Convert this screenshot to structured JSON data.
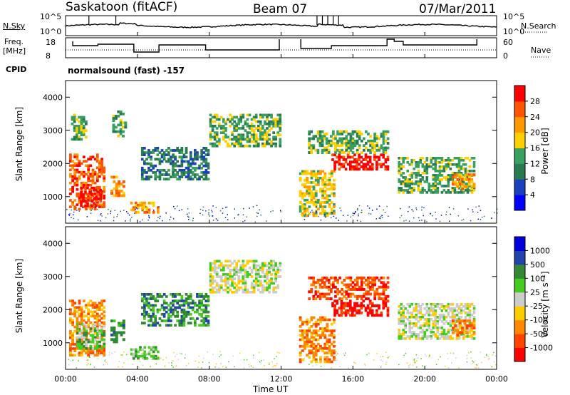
{
  "header": {
    "station": "Saskatoon (fitACF)",
    "beam": "Beam 07",
    "date": "07/Mar/2011",
    "cpid_label": "CPID",
    "cpid_text": "normalsound (fast) -157"
  },
  "noise_panel": {
    "left_label": "N.Sky",
    "right_label": "N.Search",
    "left_ticks": [
      "10^5",
      "10^0"
    ],
    "right_ticks": [
      "10^5",
      "10^0"
    ]
  },
  "freq_panel": {
    "left_label_1": "Freq.",
    "left_label_2": "[MHz]",
    "right_label": "Nave",
    "left_ticks": [
      "18",
      "8"
    ],
    "right_ticks": [
      "60",
      "0"
    ]
  },
  "colors": {
    "power_scale": [
      "#0000ff",
      "#1a40c0",
      "#2a7a50",
      "#3aa060",
      "#ffd000",
      "#ff9900",
      "#ff5500",
      "#ff0000"
    ],
    "velocity_scale": [
      "#ff0000",
      "#ff4400",
      "#ff8800",
      "#ffcc00",
      "#cccccc",
      "#44cc22",
      "#338833",
      "#2244aa",
      "#0000dd"
    ]
  },
  "chart_data": [
    {
      "type": "heatmap",
      "name": "power",
      "ylabel": "Slant Range [km]",
      "y_ticks": [
        "1000",
        "2000",
        "3000",
        "4000"
      ],
      "ylim": [
        200,
        4500
      ],
      "xlim_hours": [
        0,
        24
      ],
      "colorbar_label": "Power [dB]",
      "colorbar_ticks": [
        "4",
        "8",
        "12",
        "16",
        "20",
        "24",
        "28"
      ],
      "echo_regions": [
        {
          "t0": 0.2,
          "t1": 2.2,
          "r0": 600,
          "r1": 2300,
          "level": 6
        },
        {
          "t0": 0.8,
          "t1": 2.0,
          "r0": 700,
          "r1": 1300,
          "level": 7
        },
        {
          "t0": 0.3,
          "t1": 1.2,
          "r0": 2700,
          "r1": 3500,
          "level": 3
        },
        {
          "t0": 2.5,
          "t1": 3.3,
          "r0": 1000,
          "r1": 1700,
          "level": 5
        },
        {
          "t0": 2.6,
          "t1": 3.4,
          "r0": 2800,
          "r1": 3600,
          "level": 3
        },
        {
          "t0": 3.6,
          "t1": 5.2,
          "r0": 500,
          "r1": 850,
          "level": 5
        },
        {
          "t0": 4.2,
          "t1": 8.0,
          "r0": 1500,
          "r1": 2500,
          "level": 2
        },
        {
          "t0": 8.0,
          "t1": 12.0,
          "r0": 2500,
          "r1": 3500,
          "level": 3
        },
        {
          "t0": 13.0,
          "t1": 15.0,
          "r0": 400,
          "r1": 1800,
          "level": 4
        },
        {
          "t0": 14.8,
          "t1": 18.0,
          "r0": 1800,
          "r1": 2300,
          "level": 7
        },
        {
          "t0": 13.5,
          "t1": 18.0,
          "r0": 2300,
          "r1": 3000,
          "level": 3
        },
        {
          "t0": 18.5,
          "t1": 22.8,
          "r0": 1100,
          "r1": 2200,
          "level": 3
        },
        {
          "t0": 21.5,
          "t1": 22.8,
          "r0": 1200,
          "r1": 1700,
          "level": 5
        }
      ]
    },
    {
      "type": "heatmap",
      "name": "velocity",
      "ylabel": "Slant Range [km]",
      "y_ticks": [
        "1000",
        "2000",
        "3000",
        "4000"
      ],
      "ylim": [
        200,
        4500
      ],
      "xlim_hours": [
        0,
        24
      ],
      "colorbar_label": "Velocity [m s⁻¹]",
      "colorbar_ticks": [
        "-1000",
        "-500",
        "-100",
        "-25",
        "25",
        "100",
        "500",
        "1000"
      ],
      "echo_regions": [
        {
          "t0": 0.2,
          "t1": 2.2,
          "r0": 600,
          "r1": 2300,
          "level": 2
        },
        {
          "t0": 0.6,
          "t1": 2.2,
          "r0": 800,
          "r1": 1600,
          "level": 5
        },
        {
          "t0": 2.5,
          "t1": 3.3,
          "r0": 1000,
          "r1": 1700,
          "level": 6
        },
        {
          "t0": 3.6,
          "t1": 5.2,
          "r0": 500,
          "r1": 900,
          "level": 5
        },
        {
          "t0": 4.2,
          "t1": 8.0,
          "r0": 1500,
          "r1": 2500,
          "level": 6
        },
        {
          "t0": 8.0,
          "t1": 12.0,
          "r0": 2500,
          "r1": 3500,
          "level": 4
        },
        {
          "t0": 13.0,
          "t1": 15.0,
          "r0": 400,
          "r1": 1800,
          "level": 2
        },
        {
          "t0": 14.8,
          "t1": 18.0,
          "r0": 1800,
          "r1": 2300,
          "level": 0
        },
        {
          "t0": 13.5,
          "t1": 18.0,
          "r0": 2300,
          "r1": 3000,
          "level": 1
        },
        {
          "t0": 18.5,
          "t1": 22.8,
          "r0": 1100,
          "r1": 2200,
          "level": 4
        },
        {
          "t0": 21.5,
          "t1": 22.8,
          "r0": 1200,
          "r1": 1700,
          "level": 2
        }
      ]
    }
  ],
  "time_axis": {
    "ticks": [
      "00:00",
      "04:00",
      "08:00",
      "12:00",
      "16:00",
      "20:00",
      "00:00"
    ],
    "label": "Time UT"
  }
}
